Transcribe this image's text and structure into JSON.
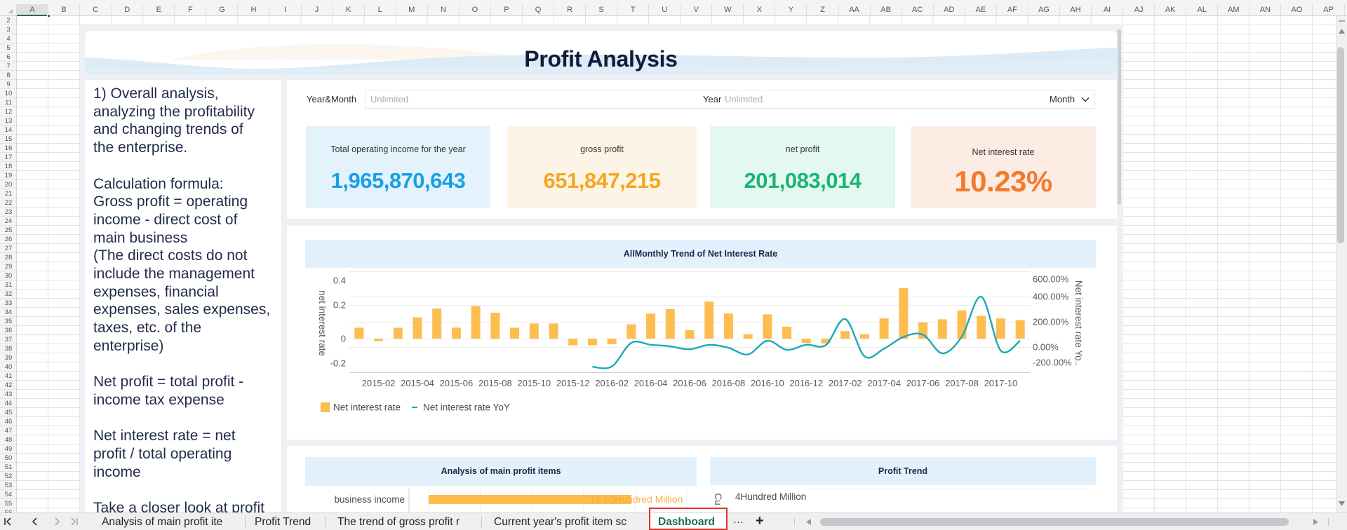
{
  "sheet": {
    "columns": [
      "A",
      "B",
      "C",
      "D",
      "E",
      "F",
      "G",
      "H",
      "I",
      "J",
      "K",
      "L",
      "M",
      "N",
      "O",
      "P",
      "Q",
      "R",
      "S",
      "T",
      "U",
      "V",
      "W",
      "X",
      "Y",
      "Z",
      "AA",
      "AB",
      "AC",
      "AD",
      "AE",
      "AF",
      "AG",
      "AH",
      "AI",
      "AJ",
      "AK",
      "AL",
      "AM",
      "AN",
      "AO",
      "AP"
    ],
    "rows": [
      "2",
      "3",
      "4",
      "5",
      "6",
      "7",
      "8",
      "9",
      "10",
      "11",
      "12",
      "13",
      "14",
      "15",
      "16",
      "17",
      "18",
      "19",
      "20",
      "21",
      "22",
      "23",
      "24",
      "25",
      "26",
      "27",
      "28",
      "29",
      "30",
      "31",
      "32",
      "33",
      "34",
      "35",
      "36",
      "37",
      "38",
      "39",
      "40",
      "41",
      "42",
      "43",
      "44",
      "45",
      "46",
      "47",
      "48",
      "49",
      "50",
      "51",
      "52",
      "53",
      "54",
      "55",
      "56"
    ],
    "active_column": "A"
  },
  "dashboard": {
    "title": "Profit Analysis",
    "notes": [
      "1) Overall analysis,",
      "analyzing the profitability",
      "and changing trends of",
      "the enterprise.",
      "",
      "Calculation formula:",
      "Gross profit = operating",
      "income - direct cost of",
      "main business",
      "(The direct costs do not",
      "include the management",
      "expenses, financial",
      "expenses, sales expenses,",
      "taxes, etc. of the",
      "enterprise)",
      "",
      "Net profit = total profit -",
      "income tax expense",
      "",
      "Net interest rate = net",
      "profit / total operating",
      "income",
      "",
      "Take a closer look at profit"
    ],
    "filters": {
      "year_month_label": "Year&Month",
      "year_month_placeholder": "Unlimited",
      "year_label": "Year",
      "year_placeholder": "Unlimited",
      "granularity": "Month"
    },
    "kpis": [
      {
        "label": "Total operating income for the year",
        "value": "1,965,870,643",
        "color": "#1a9fe6",
        "bg": "#e4f2fc"
      },
      {
        "label": "gross profit",
        "value": "651,847,215",
        "color": "#f5a623",
        "bg": "#fcf5e6"
      },
      {
        "label": "net profit",
        "value": "201,083,014",
        "color": "#1bb473",
        "bg": "#e3f8f0"
      },
      {
        "label": "Net interest rate",
        "value": "10.23%",
        "color": "#f47a2b",
        "bg": "#fdece3"
      }
    ],
    "trend_chart_title": "AllMonthly Trend of Net Interest Rate",
    "profit_items_title": "Analysis of main profit items",
    "profit_trend_title": "Profit Trend"
  },
  "chart_data": [
    {
      "type": "bar+line",
      "title": "AllMonthly Trend of Net Interest Rate",
      "categories": [
        "2015-01",
        "2015-02",
        "2015-03",
        "2015-04",
        "2015-05",
        "2015-06",
        "2015-07",
        "2015-08",
        "2015-09",
        "2015-10",
        "2015-11",
        "2015-12",
        "2016-01",
        "2016-02",
        "2016-03",
        "2016-04",
        "2016-05",
        "2016-06",
        "2016-07",
        "2016-08",
        "2016-09",
        "2016-10",
        "2016-11",
        "2016-12",
        "2017-01",
        "2017-02",
        "2017-03",
        "2017-04",
        "2017-05",
        "2017-06",
        "2017-07",
        "2017-08",
        "2017-09",
        "2017-10",
        "2017-11"
      ],
      "x_tick_labels": [
        "2015-02",
        "2015-04",
        "2015-06",
        "2015-08",
        "2015-10",
        "2015-12",
        "2016-02",
        "2016-04",
        "2016-06",
        "2016-08",
        "2016-10",
        "2016-12",
        "2017-02",
        "2017-04",
        "2017-06",
        "2017-08",
        "2017-10"
      ],
      "series": [
        {
          "name": "Net interest rate",
          "type": "bar",
          "axis": "left",
          "color": "#fdbd4f",
          "values": [
            0.065,
            -0.015,
            0.065,
            0.126,
            0.179,
            0.065,
            0.193,
            0.154,
            0.065,
            0.09,
            0.09,
            -0.04,
            -0.04,
            -0.033,
            0.085,
            0.149,
            0.175,
            0.05,
            0.22,
            0.149,
            0.026,
            0.144,
            0.071,
            -0.026,
            -0.028,
            0.045,
            0.026,
            0.12,
            0.3,
            0.096,
            0.115,
            0.168,
            0.135,
            0.12,
            0.11
          ]
        },
        {
          "name": "Net interest rate YoY",
          "type": "line",
          "axis": "right",
          "unit": "%",
          "color": "#1aa8ba",
          "values": [
            null,
            null,
            null,
            null,
            null,
            null,
            null,
            null,
            null,
            null,
            null,
            null,
            -157,
            -154,
            33,
            18,
            5,
            -18,
            17,
            -6,
            -59,
            50,
            -22,
            18,
            15,
            222,
            -74,
            -13,
            80,
            98,
            -50,
            83,
            398,
            -28,
            50
          ]
        }
      ],
      "ylabel": "net interest rate",
      "ylabel_right": "Net interest rate Yo..",
      "yticks_left": [
        "0.4",
        "0.2",
        "0",
        "-0.2"
      ],
      "yticks_right": [
        "600.00%",
        "400.00%",
        "200.00%",
        "0.00%",
        "-200.00%"
      ],
      "ylim": [
        -0.2,
        0.4
      ],
      "ylim_right": [
        -200,
        600
      ],
      "grid": true,
      "legend_position": "bottom-left"
    },
    {
      "type": "bar",
      "orientation": "horizontal",
      "title": "Analysis of main profit items",
      "categories": [
        "business income"
      ],
      "values": [
        19.66
      ],
      "unit": "Hundred Million",
      "value_labels": [
        "19.66Hundred Million"
      ],
      "color": "#fdbd4f",
      "label_color": "#f5a623"
    },
    {
      "type": "line",
      "title": "Profit Trend",
      "ylabel": "Cu",
      "yticks": [
        "4Hundred Million"
      ]
    }
  ],
  "sheet_tabs": {
    "tabs": [
      "Analysis of main profit ite",
      "Profit Trend",
      "The trend of gross profit r",
      "Current year's profit item sc",
      "Dashboard"
    ],
    "active": "Dashboard",
    "more": "···",
    "add": "+"
  }
}
